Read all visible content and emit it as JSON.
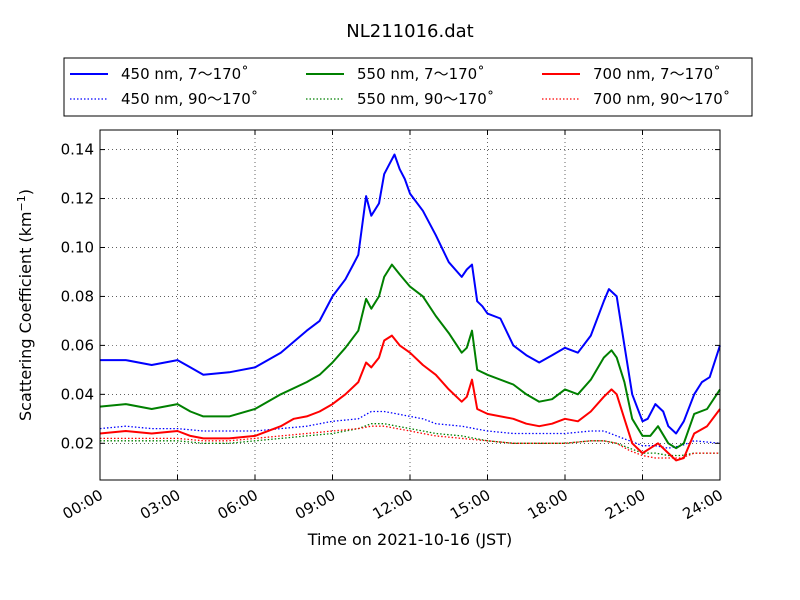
{
  "chart_data": {
    "type": "line",
    "title": "NL211016.dat",
    "xlabel": "Time on 2021-10-16 (JST)",
    "ylabel_main": "Scattering Coefficient (km",
    "ylabel_exp": "−1",
    "ylabel_close": ")",
    "xlim": [
      0,
      24
    ],
    "ylim": [
      0.005,
      0.148
    ],
    "x_ticks": [
      0,
      3,
      6,
      9,
      12,
      15,
      18,
      21,
      24
    ],
    "x_tick_labels": [
      "00:00",
      "03:00",
      "06:00",
      "09:00",
      "12:00",
      "15:00",
      "18:00",
      "21:00",
      "24:00"
    ],
    "y_ticks": [
      0.02,
      0.04,
      0.06,
      0.08,
      0.1,
      0.12,
      0.14
    ],
    "y_tick_labels": [
      "0.02",
      "0.04",
      "0.06",
      "0.08",
      "0.10",
      "0.12",
      "0.14"
    ],
    "grid": true,
    "legend_position": "top-center",
    "series": [
      {
        "name": "450 nm, 7～170˚",
        "color": "#0000ff",
        "style": "solid",
        "x": [
          0,
          1,
          2,
          3,
          3.5,
          4,
          5,
          6,
          7,
          8,
          8.5,
          9,
          9.5,
          9.8,
          10,
          10.3,
          10.5,
          10.8,
          11,
          11.2,
          11.4,
          11.6,
          11.8,
          12,
          12.5,
          13,
          13.5,
          14,
          14.2,
          14.4,
          14.6,
          14.8,
          15,
          15.5,
          16,
          16.5,
          17,
          17.5,
          18,
          18.5,
          19,
          19.5,
          19.7,
          20,
          20.3,
          20.6,
          21,
          21.2,
          21.5,
          21.8,
          22,
          22.3,
          22.6,
          23,
          23.3,
          23.6,
          24
        ],
        "y": [
          0.054,
          0.054,
          0.052,
          0.054,
          0.051,
          0.048,
          0.049,
          0.051,
          0.057,
          0.066,
          0.07,
          0.08,
          0.087,
          0.093,
          0.097,
          0.121,
          0.113,
          0.118,
          0.13,
          0.134,
          0.138,
          0.132,
          0.128,
          0.122,
          0.115,
          0.105,
          0.094,
          0.088,
          0.091,
          0.093,
          0.078,
          0.076,
          0.073,
          0.071,
          0.06,
          0.056,
          0.053,
          0.056,
          0.059,
          0.057,
          0.064,
          0.078,
          0.083,
          0.08,
          0.06,
          0.04,
          0.029,
          0.03,
          0.036,
          0.033,
          0.027,
          0.024,
          0.029,
          0.04,
          0.045,
          0.047,
          0.06
        ]
      },
      {
        "name": "550 nm, 7～170˚",
        "color": "#008000",
        "style": "solid",
        "x": [
          0,
          1,
          2,
          3,
          3.5,
          4,
          5,
          6,
          7,
          8,
          8.5,
          9,
          9.5,
          10,
          10.3,
          10.5,
          10.8,
          11,
          11.3,
          11.6,
          12,
          12.5,
          13,
          13.5,
          14,
          14.2,
          14.4,
          14.6,
          15,
          16,
          16.5,
          17,
          17.5,
          18,
          18.5,
          19,
          19.5,
          19.8,
          20,
          20.3,
          20.6,
          21,
          21.3,
          21.6,
          22,
          22.3,
          22.6,
          23,
          23.5,
          24
        ],
        "y": [
          0.035,
          0.036,
          0.034,
          0.036,
          0.033,
          0.031,
          0.031,
          0.034,
          0.04,
          0.045,
          0.048,
          0.053,
          0.059,
          0.066,
          0.079,
          0.075,
          0.08,
          0.088,
          0.093,
          0.089,
          0.084,
          0.08,
          0.072,
          0.065,
          0.057,
          0.059,
          0.066,
          0.05,
          0.048,
          0.044,
          0.04,
          0.037,
          0.038,
          0.042,
          0.04,
          0.046,
          0.055,
          0.058,
          0.055,
          0.045,
          0.03,
          0.023,
          0.023,
          0.027,
          0.02,
          0.018,
          0.02,
          0.032,
          0.034,
          0.042
        ]
      },
      {
        "name": "700 nm, 7～170˚",
        "color": "#ff0000",
        "style": "solid",
        "x": [
          0,
          1,
          2,
          3,
          3.5,
          4,
          5,
          6,
          7,
          7.5,
          8,
          8.5,
          9,
          9.5,
          10,
          10.3,
          10.5,
          10.8,
          11,
          11.3,
          11.6,
          12,
          12.5,
          13,
          13.5,
          14,
          14.2,
          14.4,
          14.6,
          15,
          16,
          16.5,
          17,
          17.5,
          18,
          18.5,
          19,
          19.5,
          19.8,
          20,
          20.3,
          20.6,
          21,
          21.3,
          21.6,
          22,
          22.3,
          22.6,
          23,
          23.5,
          24
        ],
        "y": [
          0.024,
          0.025,
          0.024,
          0.025,
          0.023,
          0.022,
          0.022,
          0.023,
          0.027,
          0.03,
          0.031,
          0.033,
          0.036,
          0.04,
          0.045,
          0.053,
          0.051,
          0.055,
          0.062,
          0.064,
          0.06,
          0.057,
          0.052,
          0.048,
          0.042,
          0.037,
          0.039,
          0.046,
          0.034,
          0.032,
          0.03,
          0.028,
          0.027,
          0.028,
          0.03,
          0.029,
          0.033,
          0.039,
          0.042,
          0.04,
          0.03,
          0.02,
          0.016,
          0.018,
          0.02,
          0.016,
          0.013,
          0.014,
          0.024,
          0.027,
          0.034
        ]
      },
      {
        "name": "450 nm, 90～170˚",
        "color": "#0000ff",
        "style": "dotted",
        "x": [
          0,
          1,
          2,
          3,
          4,
          5,
          6,
          7,
          8,
          9,
          10,
          10.5,
          11,
          11.5,
          12,
          12.5,
          13,
          14,
          15,
          16,
          17,
          18,
          19,
          19.5,
          20,
          20.5,
          21,
          21.5,
          22,
          22.5,
          23,
          24
        ],
        "y": [
          0.026,
          0.027,
          0.026,
          0.026,
          0.025,
          0.025,
          0.025,
          0.026,
          0.027,
          0.029,
          0.03,
          0.033,
          0.033,
          0.032,
          0.031,
          0.03,
          0.028,
          0.027,
          0.025,
          0.024,
          0.024,
          0.024,
          0.025,
          0.025,
          0.023,
          0.021,
          0.019,
          0.019,
          0.018,
          0.019,
          0.021,
          0.02
        ]
      },
      {
        "name": "550 nm, 90～170˚",
        "color": "#008000",
        "style": "dotted",
        "x": [
          0,
          1,
          2,
          3,
          4,
          5,
          6,
          7,
          8,
          9,
          10,
          10.5,
          11,
          11.5,
          12,
          12.5,
          13,
          14,
          15,
          16,
          17,
          18,
          19,
          19.5,
          20,
          20.5,
          21,
          21.5,
          22,
          22.5,
          23,
          24
        ],
        "y": [
          0.021,
          0.021,
          0.021,
          0.021,
          0.02,
          0.02,
          0.021,
          0.022,
          0.023,
          0.024,
          0.026,
          0.028,
          0.028,
          0.027,
          0.026,
          0.025,
          0.024,
          0.023,
          0.021,
          0.02,
          0.02,
          0.02,
          0.021,
          0.021,
          0.02,
          0.018,
          0.016,
          0.016,
          0.015,
          0.015,
          0.016,
          0.016
        ]
      },
      {
        "name": "700 nm, 90～170˚",
        "color": "#ff0000",
        "style": "dotted",
        "x": [
          0,
          1,
          2,
          3,
          4,
          5,
          6,
          7,
          8,
          9,
          10,
          10.5,
          11,
          11.5,
          12,
          12.5,
          13,
          14,
          15,
          16,
          17,
          18,
          19,
          19.5,
          20,
          20.5,
          21,
          21.5,
          22,
          22.5,
          23,
          24
        ],
        "y": [
          0.022,
          0.022,
          0.022,
          0.022,
          0.021,
          0.021,
          0.022,
          0.023,
          0.024,
          0.025,
          0.026,
          0.027,
          0.027,
          0.026,
          0.025,
          0.024,
          0.023,
          0.022,
          0.021,
          0.02,
          0.02,
          0.02,
          0.021,
          0.021,
          0.02,
          0.017,
          0.015,
          0.014,
          0.014,
          0.014,
          0.016,
          0.016
        ]
      }
    ]
  }
}
